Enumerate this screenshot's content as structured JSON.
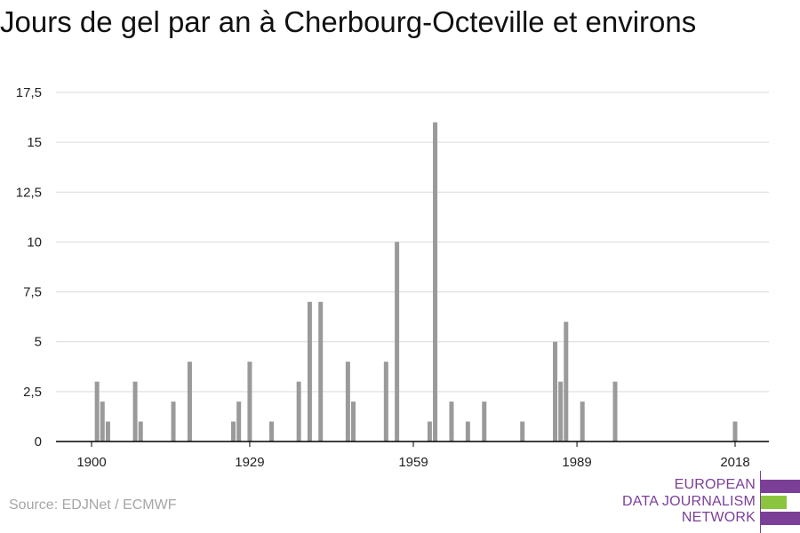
{
  "title": "Jours de gel par an à Cherbourg-Octeville et environs",
  "source": "Source: EDJNet / ECMWF",
  "logo": {
    "lines": [
      "EUROPEAN",
      "DATA JOURNALISM",
      "NETWORK"
    ]
  },
  "colors": {
    "bar": "#9a9a9a",
    "grid": "#d9d9d9",
    "axis": "#000000",
    "logo_purple": "#7b3f98",
    "logo_green": "#8bc53f"
  },
  "chart_data": {
    "type": "bar",
    "title": "Jours de gel par an à Cherbourg-Octeville et environs",
    "xlabel": "",
    "ylabel": "",
    "xlim": [
      1894,
      2024
    ],
    "ylim": [
      0,
      17.5
    ],
    "x_ticks": [
      1900,
      1929,
      1959,
      1989,
      2018
    ],
    "y_ticks": [
      0,
      2.5,
      5,
      7.5,
      10,
      12.5,
      15,
      17.5
    ],
    "y_tick_labels": [
      "0",
      "2,5",
      "5",
      "7,5",
      "10",
      "12,5",
      "15",
      "17,5"
    ],
    "grid": true,
    "x": [
      1901,
      1902,
      1903,
      1908,
      1909,
      1915,
      1918,
      1926,
      1927,
      1929,
      1933,
      1938,
      1940,
      1942,
      1947,
      1948,
      1954,
      1956,
      1962,
      1963,
      1966,
      1969,
      1972,
      1979,
      1985,
      1986,
      1987,
      1990,
      1996,
      2018
    ],
    "values": [
      3,
      2,
      1,
      3,
      1,
      2,
      4,
      1,
      2,
      4,
      1,
      3,
      7,
      7,
      4,
      2,
      4,
      10,
      1,
      16,
      2,
      1,
      2,
      1,
      5,
      3,
      6,
      2,
      3,
      1
    ]
  }
}
